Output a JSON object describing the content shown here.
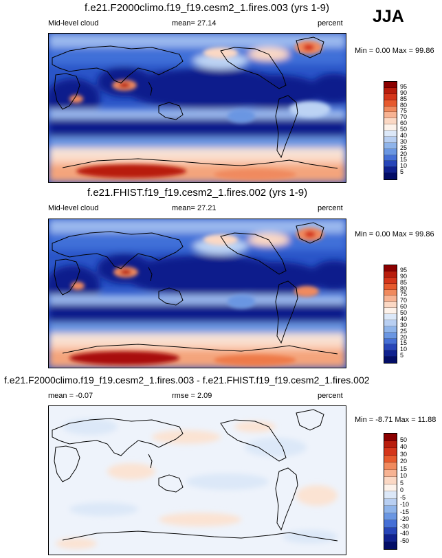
{
  "season": "JJA",
  "panels": [
    {
      "title": "f.e21.F2000climo.f19_f19.cesm2_1.fires.003 (yrs 1-9)",
      "left_label": "Mid-level cloud",
      "center_label": "mean=  27.14",
      "units": "percent",
      "minmax": "Min =  0.00 Max =  99.86",
      "colorbar_ticks": [
        "95",
        "90",
        "85",
        "80",
        "75",
        "70",
        "60",
        "50",
        "40",
        "30",
        "25",
        "20",
        "15",
        "10",
        "5"
      ],
      "colorbar_colors": [
        "#8b0000",
        "#b81c0c",
        "#d4351a",
        "#e65a2e",
        "#f08a5e",
        "#f7b393",
        "#fbd8c4",
        "#fdf2ea",
        "#dce8f8",
        "#b8cff2",
        "#8fb4ea",
        "#6a96e2",
        "#456fd6",
        "#2745b8",
        "#10218e",
        "#030d66"
      ]
    },
    {
      "title": "f.e21.FHIST.f19_f19.cesm2_1.fires.002 (yrs 1-9)",
      "left_label": "Mid-level cloud",
      "center_label": "mean=  27.21",
      "units": "percent",
      "minmax": "Min =  0.00 Max =  99.86",
      "colorbar_ticks": [
        "95",
        "90",
        "85",
        "80",
        "75",
        "70",
        "60",
        "50",
        "40",
        "30",
        "25",
        "20",
        "15",
        "10",
        "5"
      ],
      "colorbar_colors": [
        "#8b0000",
        "#b81c0c",
        "#d4351a",
        "#e65a2e",
        "#f08a5e",
        "#f7b393",
        "#fbd8c4",
        "#fdf2ea",
        "#dce8f8",
        "#b8cff2",
        "#8fb4ea",
        "#6a96e2",
        "#456fd6",
        "#2745b8",
        "#10218e",
        "#030d66"
      ]
    },
    {
      "title": "f.e21.F2000climo.f19_f19.cesm2_1.fires.003 - f.e21.FHIST.f19_f19.cesm2_1.fires.002",
      "left_label": "mean =  -0.07",
      "center_label": "rmse =  2.09",
      "units": "percent",
      "minmax": "Min = -8.71 Max = 11.88",
      "colorbar_ticks": [
        "50",
        "40",
        "30",
        "20",
        "15",
        "10",
        "5",
        "0",
        "-5",
        "-10",
        "-15",
        "-20",
        "-30",
        "-40",
        "-50"
      ],
      "colorbar_colors": [
        "#8b0000",
        "#b81c0c",
        "#d4351a",
        "#e65a2e",
        "#f08a5e",
        "#f7b393",
        "#fbd8c4",
        "#fdf2ea",
        "#dce8f8",
        "#b8cff2",
        "#8fb4ea",
        "#6a96e2",
        "#456fd6",
        "#2745b8",
        "#10218e",
        "#030d66"
      ]
    }
  ],
  "colors": {
    "deep_blue": "#0a1a8c",
    "mid_blue": "#3f6fd8",
    "light_blue": "#bcd3f4",
    "near_white": "#f4f4fb",
    "light_peach": "#fbe0cf",
    "orange": "#ee7a4a",
    "dark_red": "#a81008"
  }
}
